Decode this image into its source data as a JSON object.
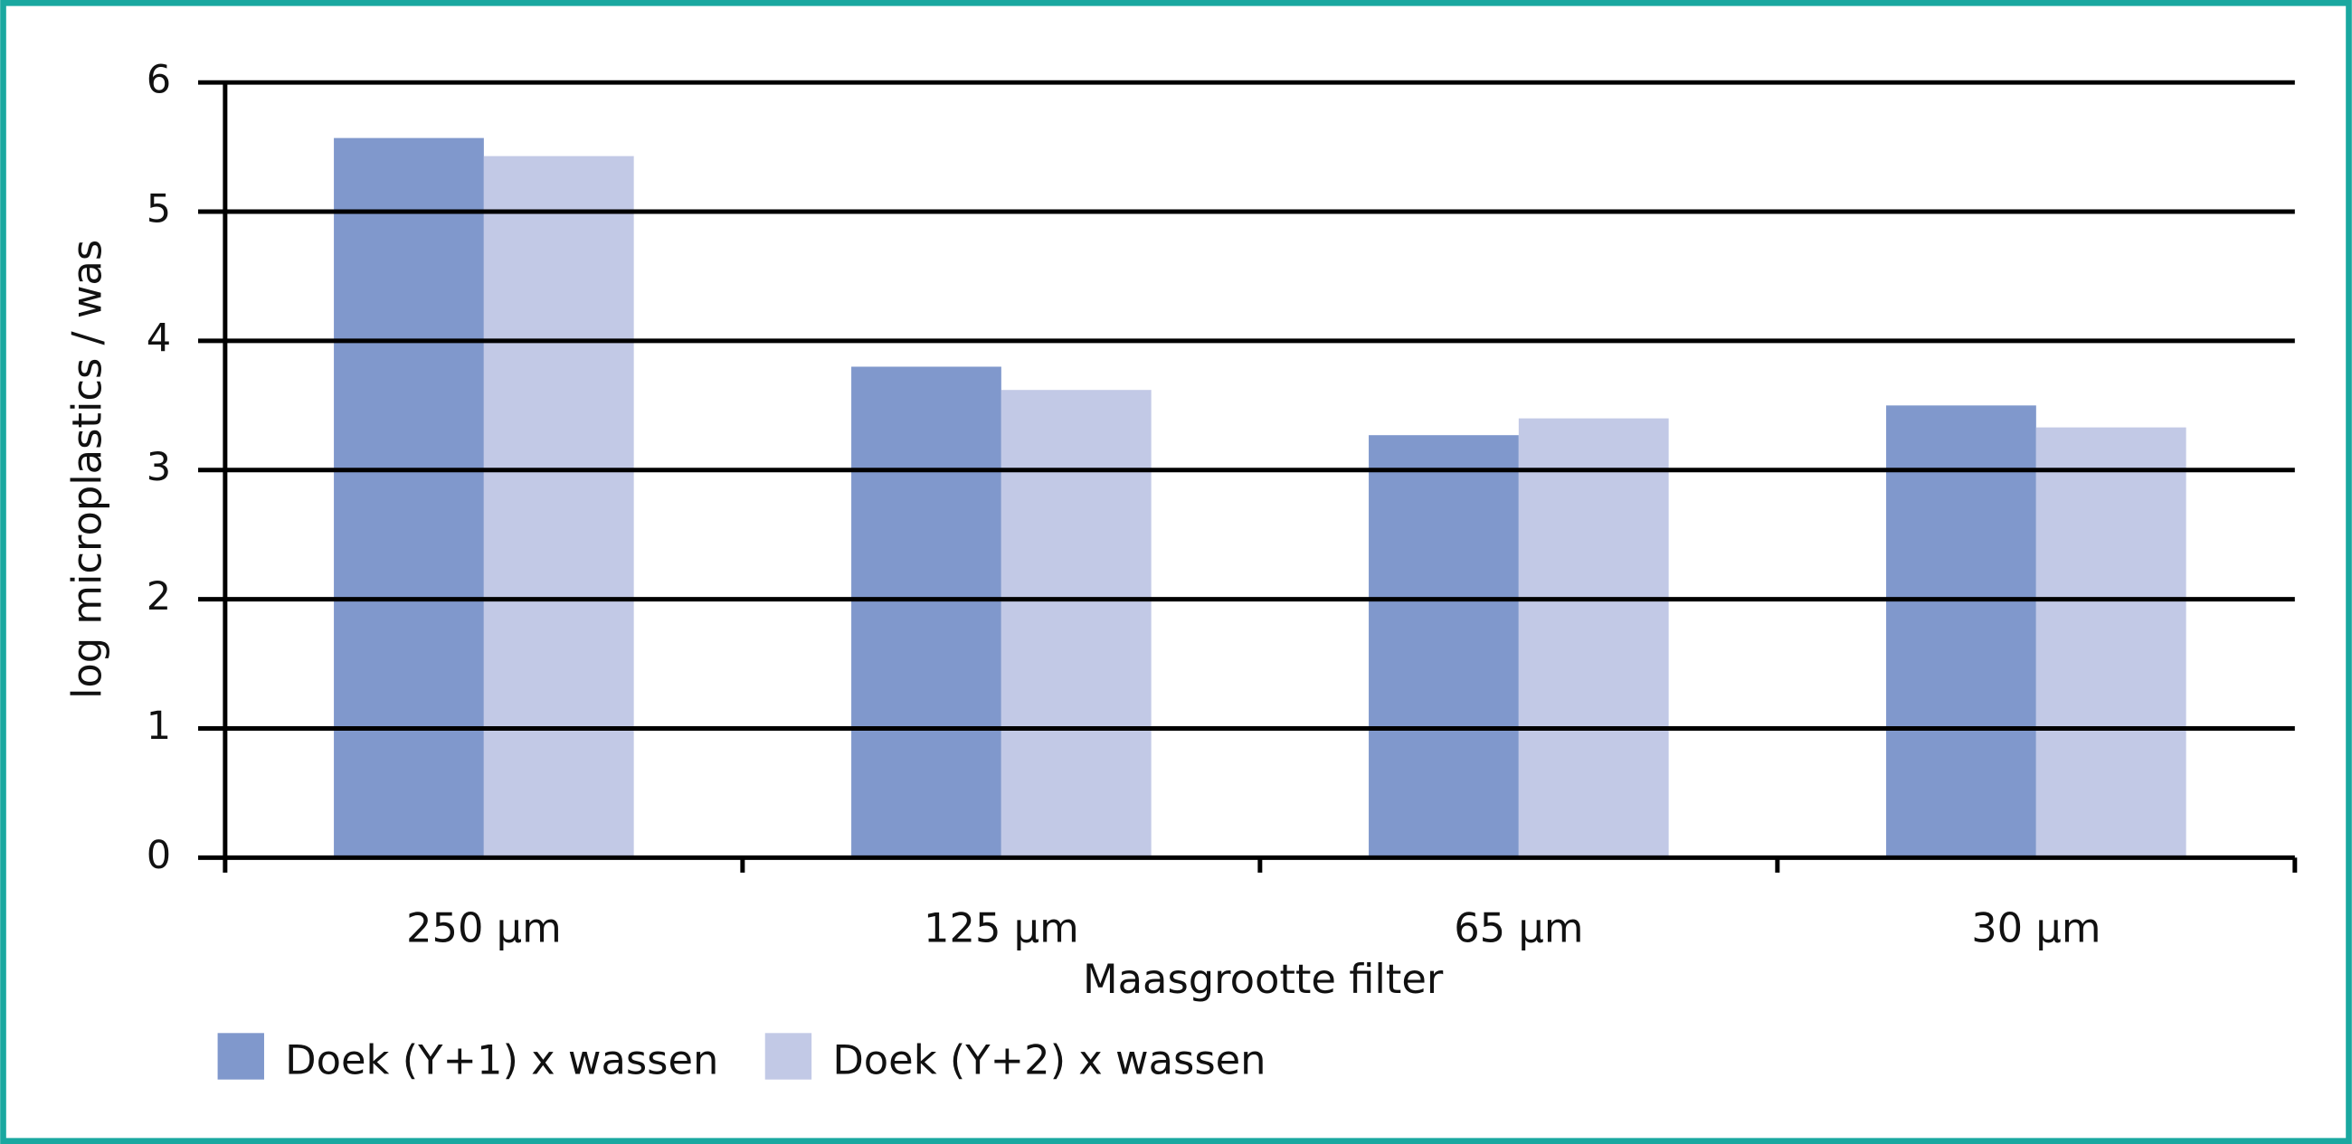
{
  "chart_data": {
    "type": "bar",
    "x_label": "Maasgrootte filter",
    "y_label": "log microplastics / was",
    "categories": [
      "250 µm",
      "125 µm",
      "65 µm",
      "30 µm"
    ],
    "series": [
      {
        "name": "Doek (Y+1) x wassen",
        "color": "#8098cc",
        "values": [
          5.57,
          3.8,
          3.27,
          3.5
        ]
      },
      {
        "name": "Doek (Y+2) x wassen",
        "color": "#c2c9e6",
        "values": [
          5.43,
          3.62,
          3.4,
          3.33
        ]
      }
    ],
    "ylim": [
      0,
      6
    ],
    "yticks": [
      0,
      1,
      2,
      3,
      4,
      5,
      6
    ],
    "grid": true,
    "legend": "bottom"
  }
}
